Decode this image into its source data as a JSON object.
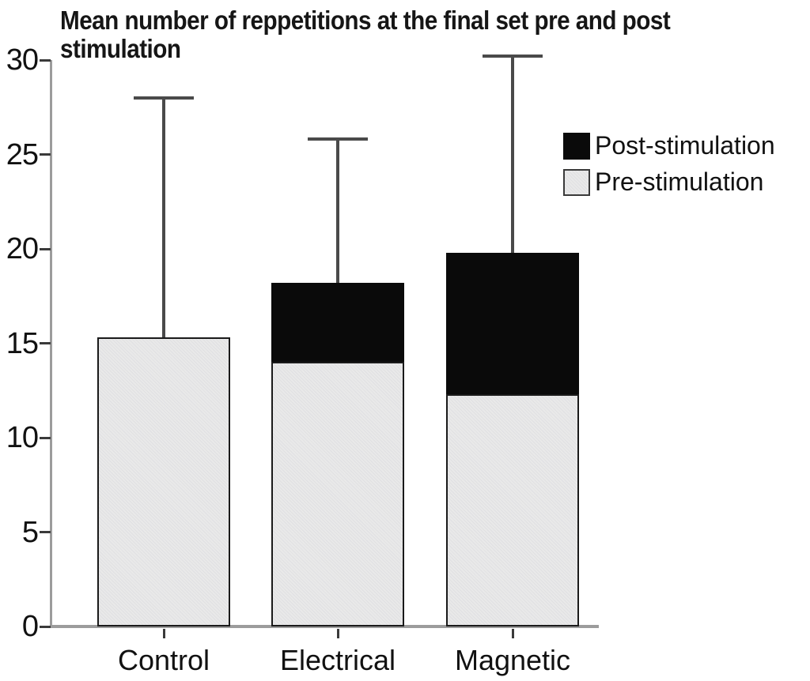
{
  "figure": {
    "title_lines": [
      "Mean number of reppetitions at the final set pre and post",
      "stimulation"
    ]
  },
  "legend": {
    "items": [
      {
        "label": "Post-stimulation"
      },
      {
        "label": "Pre-stimulation"
      }
    ]
  },
  "chart_data": {
    "type": "bar",
    "stacked": true,
    "title": "Mean number of reppetitions at the final set pre and post stimulation",
    "categories": [
      "Control",
      "Electrical",
      "Magnetic"
    ],
    "series": [
      {
        "name": "Pre-stimulation",
        "color": "#e9e9e9",
        "values": [
          15.3,
          14.0,
          12.3
        ]
      },
      {
        "name": "Post-stimulation",
        "color": "#0a0a0a",
        "values": [
          0.0,
          4.2,
          7.5
        ]
      }
    ],
    "stack_totals": [
      15.3,
      18.2,
      19.8
    ],
    "error_bar_tops": [
      28.0,
      25.8,
      30.2
    ],
    "error_bars": "upper whisker only",
    "xlabel": "",
    "ylabel": "",
    "ylim": [
      0,
      30
    ],
    "yticks": [
      0,
      5,
      10,
      15,
      20,
      25,
      30
    ],
    "grid": false,
    "legend_position": "upper right",
    "colors": {
      "pre_fill": "#e9e9e9",
      "post_fill": "#0a0a0a",
      "bar_border": "#1a1a1a",
      "error_bar": "#4a4a4a",
      "axis_line": "#9c9c9c",
      "tick_mark": "#3a3a3a",
      "text": "#111111",
      "background": "#ffffff"
    }
  }
}
